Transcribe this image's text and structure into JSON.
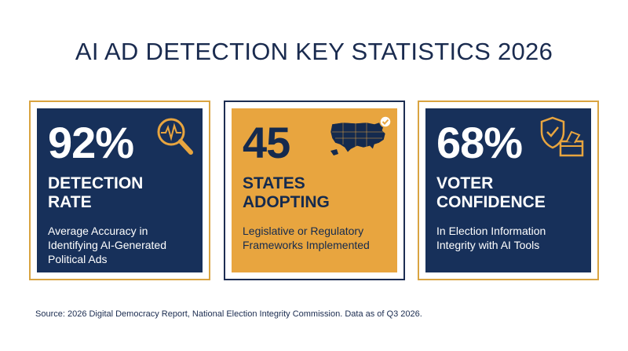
{
  "title": "AI AD DETECTION KEY STATISTICS 2026",
  "colors": {
    "navy": "#17305a",
    "gold": "#e8a53f",
    "gold_border": "#d9a441",
    "white": "#ffffff"
  },
  "cards": [
    {
      "value": "92%",
      "label_line1": "DETECTION",
      "label_line2": "RATE",
      "desc_line1": "Average Accuracy in",
      "desc_line2": "Identifying AI-Generated",
      "desc_line3": "Political Ads",
      "icon": "magnifier-pulse-icon"
    },
    {
      "value": "45",
      "label_line1": "STATES",
      "label_line2": "ADOPTING",
      "desc_line1": "Legislative or Regulatory",
      "desc_line2": "Frameworks Implemented",
      "icon": "us-map-check-icon"
    },
    {
      "value": "68%",
      "label_line1": "VOTER",
      "label_line2": "CONFIDENCE",
      "desc_line1": "In Election Information",
      "desc_line2": "Integrity with AI Tools",
      "icon": "shield-ballot-icon"
    }
  ],
  "source": "Source: 2026 Digital Democracy Report, National Election Integrity Commission. Data as of Q3 2026."
}
